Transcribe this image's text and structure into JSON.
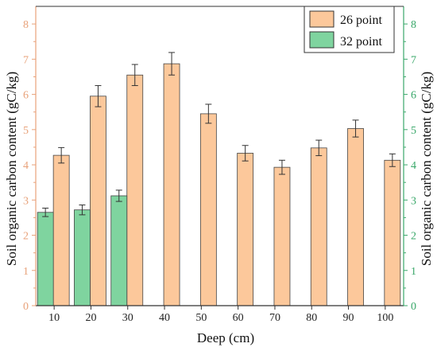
{
  "chart_data": {
    "type": "bar",
    "categories": [
      "10",
      "20",
      "30",
      "40",
      "50",
      "60",
      "70",
      "80",
      "90",
      "100"
    ],
    "series": [
      {
        "name": "26 point",
        "color": "#fcc89b",
        "values": [
          4.27,
          5.95,
          6.55,
          6.87,
          5.45,
          4.33,
          3.93,
          4.48,
          5.03,
          4.13
        ],
        "errors": [
          0.22,
          0.3,
          0.3,
          0.32,
          0.27,
          0.22,
          0.2,
          0.22,
          0.24,
          0.18
        ]
      },
      {
        "name": "32 point",
        "color": "#7fd49f",
        "values": [
          2.65,
          2.72,
          3.12,
          null,
          null,
          null,
          null,
          null,
          null,
          null
        ],
        "errors": [
          0.12,
          0.14,
          0.16,
          null,
          null,
          null,
          null,
          null,
          null,
          null
        ]
      }
    ],
    "xlabel": "Deep (cm)",
    "ylabel_left": "Soil organic carbon content (gC/kg)",
    "ylabel_right": "Soil organic carbon content (gC/kg)",
    "ylim": [
      0,
      8.5
    ],
    "yticks": [
      0,
      1,
      2,
      3,
      4,
      5,
      6,
      7,
      8
    ],
    "left_axis_color": "#e8a27a",
    "right_axis_color": "#3aa86a",
    "legend_position": "top-right",
    "grid": false
  }
}
